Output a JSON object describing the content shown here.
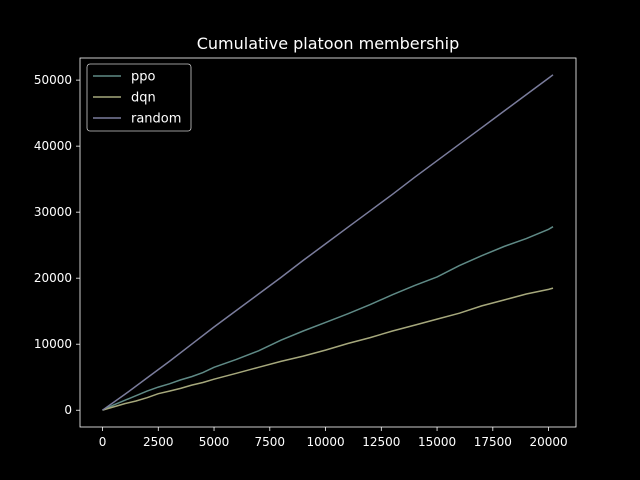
{
  "chart_data": {
    "type": "line",
    "title": "Cumulative platoon membership",
    "xlabel": "",
    "ylabel": "",
    "xlim": [
      -1010,
      21230
    ],
    "ylim": [
      -2540,
      53350
    ],
    "xticks": [
      0,
      2500,
      5000,
      7500,
      10000,
      12500,
      15000,
      17500,
      20000
    ],
    "yticks": [
      0,
      10000,
      20000,
      30000,
      40000,
      50000
    ],
    "grid": false,
    "legend": "top-left",
    "series": [
      {
        "name": "ppo",
        "color": "#5f8a86",
        "x": [
          0,
          500,
          1000,
          1500,
          2000,
          2500,
          3000,
          3500,
          4000,
          4500,
          5000,
          6000,
          7000,
          8000,
          9000,
          10000,
          11000,
          12000,
          13000,
          14000,
          15000,
          16000,
          17000,
          18000,
          19000,
          20000,
          20200
        ],
        "y": [
          0,
          800,
          1500,
          2200,
          2900,
          3500,
          4000,
          4600,
          5100,
          5700,
          6500,
          7700,
          9000,
          10600,
          12000,
          13300,
          14600,
          16000,
          17500,
          18900,
          20200,
          21900,
          23400,
          24800,
          26000,
          27400,
          27800
        ]
      },
      {
        "name": "dqn",
        "color": "#a6a87c",
        "x": [
          0,
          500,
          1000,
          1500,
          2000,
          2500,
          3000,
          3500,
          4000,
          4500,
          5000,
          6000,
          7000,
          8000,
          9000,
          10000,
          11000,
          12000,
          13000,
          14000,
          15000,
          16000,
          17000,
          18000,
          19000,
          20000,
          20200
        ],
        "y": [
          0,
          500,
          1000,
          1400,
          1900,
          2500,
          2900,
          3300,
          3800,
          4200,
          4700,
          5600,
          6500,
          7400,
          8200,
          9100,
          10100,
          11000,
          12000,
          12900,
          13800,
          14700,
          15800,
          16700,
          17600,
          18300,
          18500
        ]
      },
      {
        "name": "random",
        "color": "#7a7c9c",
        "x": [
          0,
          1000,
          2000,
          3000,
          4000,
          5000,
          6000,
          7000,
          8000,
          9000,
          10000,
          11000,
          12000,
          13000,
          14000,
          15000,
          16000,
          17000,
          18000,
          19000,
          20000,
          20200
        ],
        "y": [
          0,
          2400,
          4900,
          7400,
          10000,
          12600,
          15100,
          17600,
          20100,
          22700,
          25200,
          27700,
          30200,
          32700,
          35300,
          37800,
          40300,
          42800,
          45300,
          47800,
          50300,
          50800
        ]
      }
    ]
  }
}
